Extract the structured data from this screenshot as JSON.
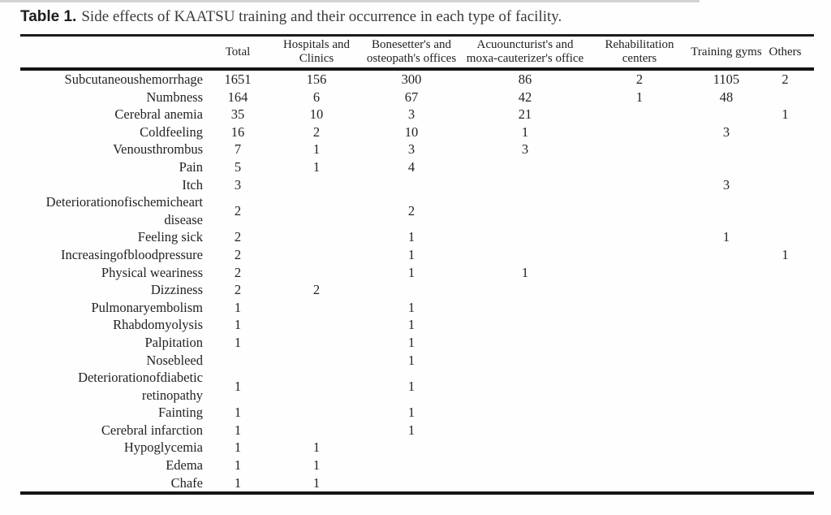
{
  "title": {
    "label": "Table 1.",
    "text": "Side effects of KAATSU training and their occurrence in each type of facility."
  },
  "table": {
    "columns": [
      {
        "line1": "",
        "line2": ""
      },
      {
        "line1": "Total",
        "line2": ""
      },
      {
        "line1": "Hospitals and",
        "line2": "Clinics"
      },
      {
        "line1": "Bonesetter's and",
        "line2": "osteopath's offices"
      },
      {
        "line1": "Acuouncturist's and",
        "line2": "moxa-cauterizer's office"
      },
      {
        "line1": "Rehabilitation",
        "line2": "centers"
      },
      {
        "line1": "Training gyms",
        "line2": ""
      },
      {
        "line1": "Others",
        "line2": ""
      }
    ],
    "rows": [
      {
        "label": "Subcutaneoushemorrhage",
        "values": [
          "1651",
          "156",
          "300",
          "86",
          "2",
          "1105",
          "2"
        ]
      },
      {
        "label": "Numbness",
        "values": [
          "164",
          "6",
          "67",
          "42",
          "1",
          "48",
          ""
        ]
      },
      {
        "label": "Cerebral anemia",
        "values": [
          "35",
          "10",
          "3",
          "21",
          "",
          "",
          "1"
        ]
      },
      {
        "label": "Coldfeeling",
        "values": [
          "16",
          "2",
          "10",
          "1",
          "",
          "3",
          ""
        ]
      },
      {
        "label": "Venousthrombus",
        "values": [
          "7",
          "1",
          "3",
          "3",
          "",
          "",
          ""
        ]
      },
      {
        "label": "Pain",
        "values": [
          "5",
          "1",
          "4",
          "",
          "",
          "",
          ""
        ]
      },
      {
        "label": "Itch",
        "values": [
          "3",
          "",
          "",
          "",
          "",
          "3",
          ""
        ]
      },
      {
        "label": "Deteriorationofischemicheart disease",
        "values": [
          "2",
          "",
          "2",
          "",
          "",
          "",
          ""
        ]
      },
      {
        "label": "Feeling sick",
        "values": [
          "2",
          "",
          "1",
          "",
          "",
          "1",
          ""
        ]
      },
      {
        "label": "Increasingofbloodpressure",
        "values": [
          "2",
          "",
          "1",
          "",
          "",
          "",
          "1"
        ]
      },
      {
        "label": "Physical weariness",
        "values": [
          "2",
          "",
          "1",
          "1",
          "",
          "",
          ""
        ]
      },
      {
        "label": "Dizziness",
        "values": [
          "2",
          "2",
          "",
          "",
          "",
          "",
          ""
        ]
      },
      {
        "label": "Pulmonaryembolism",
        "values": [
          "1",
          "",
          "1",
          "",
          "",
          "",
          ""
        ]
      },
      {
        "label": "Rhabdomyolysis",
        "values": [
          "1",
          "",
          "1",
          "",
          "",
          "",
          ""
        ]
      },
      {
        "label": "Palpitation",
        "values": [
          "1",
          "",
          "1",
          "",
          "",
          "",
          ""
        ]
      },
      {
        "label": "Nosebleed",
        "values": [
          "",
          "",
          "1",
          "",
          "",
          "",
          ""
        ]
      },
      {
        "label": "Deteriorationofdiabetic retinopathy",
        "values": [
          "1",
          "",
          "1",
          "",
          "",
          "",
          ""
        ]
      },
      {
        "label": "Fainting",
        "values": [
          "1",
          "",
          "1",
          "",
          "",
          "",
          ""
        ]
      },
      {
        "label": "Cerebral infarction",
        "values": [
          "1",
          "",
          "1",
          "",
          "",
          "",
          ""
        ]
      },
      {
        "label": "Hypoglycemia",
        "values": [
          "1",
          "1",
          "",
          "",
          "",
          "",
          ""
        ]
      },
      {
        "label": "Edema",
        "values": [
          "1",
          "1",
          "",
          "",
          "",
          "",
          ""
        ]
      },
      {
        "label": "Chafe",
        "values": [
          "1",
          "1",
          "",
          "",
          "",
          "",
          ""
        ]
      }
    ]
  }
}
